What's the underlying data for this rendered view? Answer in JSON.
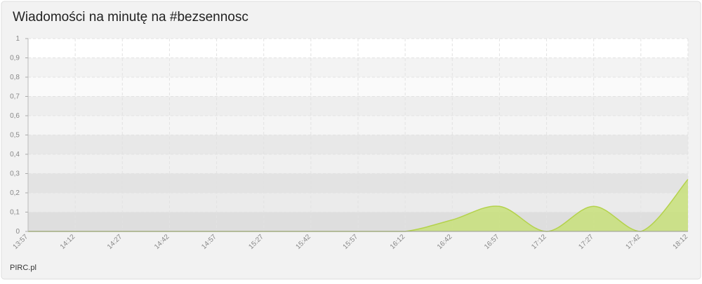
{
  "chart_data": {
    "type": "area",
    "title": "Wiadomości na minutę na #bezsennosc",
    "footer": "PIRC.pl",
    "categories": [
      "13:57",
      "14:12",
      "14:27",
      "14:42",
      "14:57",
      "15:27",
      "15:42",
      "15:57",
      "16:12",
      "16:42",
      "16:57",
      "17:12",
      "17:27",
      "17:42",
      "18:12"
    ],
    "values": [
      0,
      0,
      0,
      0,
      0,
      0,
      0,
      0,
      0,
      0.06,
      0.13,
      0,
      0.13,
      0,
      0.27
    ],
    "color": "#c8e07a",
    "line_color": "#b4d24c",
    "ylim": [
      0,
      1
    ],
    "yticks": [
      0,
      {
        "value": 0.1,
        "label": "0,1"
      },
      {
        "value": 0.2,
        "label": "0,2"
      },
      {
        "value": 0.3,
        "label": "0,3"
      },
      {
        "value": 0.4,
        "label": "0,4"
      },
      {
        "value": 0.5,
        "label": "0,5"
      },
      {
        "value": 0.6,
        "label": "0,6"
      },
      {
        "value": 0.7,
        "label": "0,7"
      },
      {
        "value": 0.8,
        "label": "0,8"
      },
      {
        "value": 0.9,
        "label": "0,9"
      },
      1
    ],
    "grid": true
  }
}
